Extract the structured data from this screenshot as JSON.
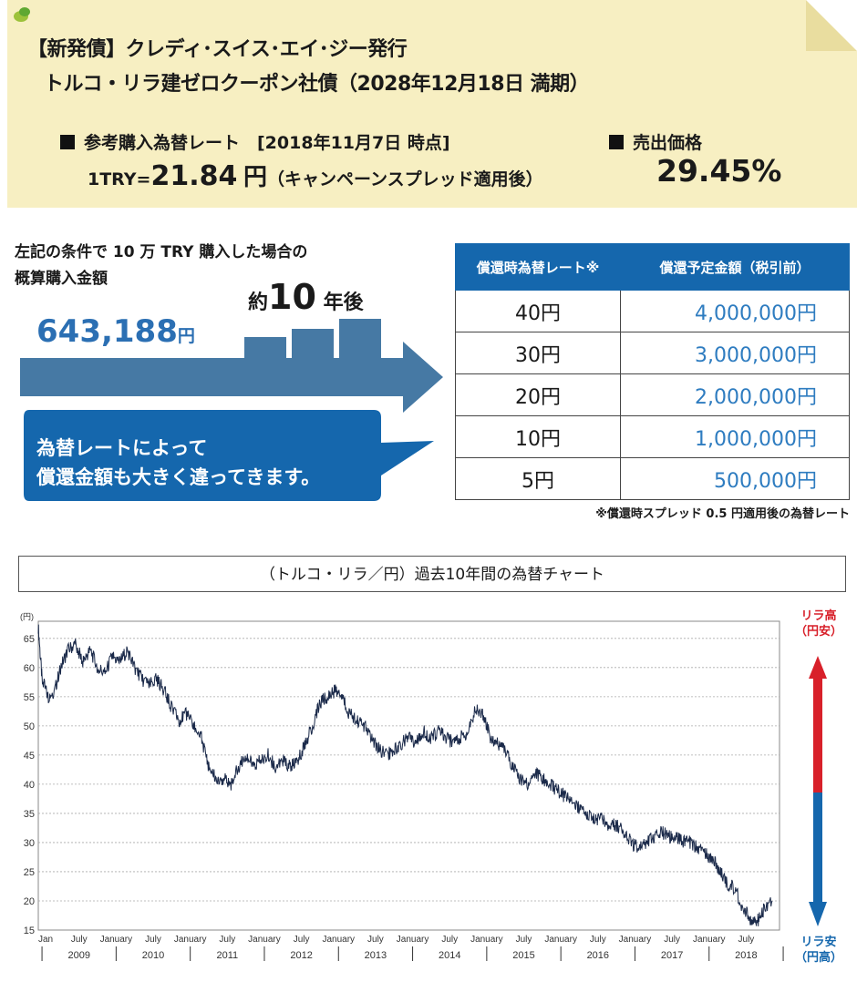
{
  "header": {
    "title_line1": "【新発債】クレディ･スイス･エイ･ジー発行",
    "title_line2": "トルコ・リラ建ゼロクーポン社債（2028年12月18日 満期）",
    "rate_heading": "参考購入為替レート　[2018年11月7日 時点]",
    "rate_prefix": "1TRY=",
    "rate_value": "21.84",
    "rate_unit": "円",
    "rate_note": "（キャンペーンスプレッド適用後）",
    "price_heading": "売出価格",
    "price_value": "29.45%"
  },
  "purchase": {
    "condition_line1": "左記の条件で 10 万 TRY 購入した場合の",
    "condition_line2": "概算購入金額",
    "amount": "643,188",
    "amount_unit": "円",
    "after_prefix": "約",
    "after_years": "10",
    "after_suffix": "年後",
    "bubble_line1": "為替レートによって",
    "bubble_line2": "償還金額も大きく違ってきます。"
  },
  "redemption_table": {
    "col_rate": "償還時為替レート※",
    "col_amount": "償還予定金額（税引前）",
    "rows": [
      {
        "rate": "40円",
        "amount": "4,000,000円"
      },
      {
        "rate": "30円",
        "amount": "3,000,000円"
      },
      {
        "rate": "20円",
        "amount": "2,000,000円"
      },
      {
        "rate": "10円",
        "amount": "1,000,000円"
      },
      {
        "rate": "5円",
        "amount": "500,000円"
      }
    ],
    "footnote": "※償還時スプレッド 0.5 円適用後の為替レート"
  },
  "chart_title": "（トルコ・リラ／円）過去10年間の為替チャート",
  "legend": {
    "high_line1": "リラ高",
    "high_line2": "（円安）",
    "low_line1": "リラ安",
    "low_line2": "（円高）"
  },
  "colors": {
    "accent_blue": "#1567ad",
    "amount_blue": "#2e7cc0",
    "red": "#d8202a",
    "note_bg": "#f7efc2"
  },
  "chart_data": {
    "type": "line",
    "title": "（トルコ・リラ／円）過去10年間の為替チャート",
    "ylabel": "(円)",
    "ylim": [
      15,
      67
    ],
    "yticks": [
      15,
      20,
      25,
      30,
      35,
      40,
      45,
      50,
      55,
      60,
      65
    ],
    "grid": true,
    "month_labels": [
      "Jan",
      "July",
      "January",
      "July",
      "January",
      "July",
      "January",
      "July",
      "January",
      "July",
      "January",
      "July",
      "January",
      "July",
      "January",
      "July",
      "January",
      "July",
      "January",
      "July"
    ],
    "year_labels": [
      "2009",
      "2010",
      "2011",
      "2012",
      "2013",
      "2014",
      "2015",
      "2016",
      "2017",
      "2018"
    ],
    "series": [
      {
        "x": [
          2008.95,
          2009.0,
          2009.08,
          2009.17,
          2009.25,
          2009.35,
          2009.45,
          2009.55,
          2009.65,
          2009.75,
          2009.85,
          2009.95,
          2010.05,
          2010.15,
          2010.25,
          2010.35,
          2010.45,
          2010.55,
          2010.65,
          2010.75,
          2010.85,
          2010.95,
          2011.05,
          2011.15,
          2011.25,
          2011.35,
          2011.45,
          2011.55,
          2011.65,
          2011.75,
          2011.85,
          2011.95,
          2012.05,
          2012.15,
          2012.25,
          2012.35,
          2012.45,
          2012.55,
          2012.65,
          2012.75,
          2012.85,
          2012.95,
          2013.05,
          2013.15,
          2013.25,
          2013.35,
          2013.45,
          2013.55,
          2013.65,
          2013.75,
          2013.85,
          2013.95,
          2014.05,
          2014.15,
          2014.25,
          2014.35,
          2014.45,
          2014.55,
          2014.65,
          2014.75,
          2014.85,
          2014.95,
          2015.05,
          2015.15,
          2015.25,
          2015.35,
          2015.45,
          2015.55,
          2015.65,
          2015.75,
          2015.85,
          2015.95,
          2016.05,
          2016.15,
          2016.25,
          2016.35,
          2016.45,
          2016.55,
          2016.65,
          2016.75,
          2016.85,
          2016.95,
          2017.05,
          2017.15,
          2017.25,
          2017.35,
          2017.45,
          2017.55,
          2017.65,
          2017.75,
          2017.85,
          2017.95,
          2018.05,
          2018.15,
          2018.25,
          2018.35,
          2018.45,
          2018.55,
          2018.62,
          2018.68,
          2018.75,
          2018.85
        ],
        "y": [
          67,
          58,
          55,
          56,
          60,
          63,
          64,
          61,
          63,
          60,
          59,
          62,
          61,
          63,
          60,
          58,
          57,
          58,
          56,
          53,
          51,
          52,
          50,
          48,
          43,
          41,
          41,
          40,
          43,
          45,
          43,
          44,
          45,
          43,
          44,
          43,
          44,
          47,
          50,
          54,
          55,
          56,
          55,
          52,
          51,
          50,
          48,
          46,
          45,
          46,
          47,
          48,
          47,
          49,
          48,
          49,
          48,
          47,
          48,
          49,
          53,
          52,
          48,
          47,
          46,
          43,
          41,
          40,
          42,
          41,
          40,
          39,
          38,
          37,
          36,
          35,
          34,
          34,
          33,
          33,
          32,
          30,
          29,
          30,
          31,
          32,
          31,
          31,
          30,
          30,
          29,
          28,
          27,
          25,
          23,
          22,
          19,
          17,
          16,
          17,
          19,
          20
        ]
      }
    ]
  }
}
